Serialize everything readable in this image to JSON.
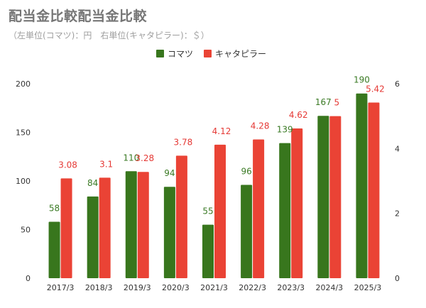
{
  "chart_data": {
    "type": "bar",
    "title": "配当金比較配当金比較",
    "subtitle": "（左単位(コマツ)：円　右単位(キャタピラー)：＄）",
    "categories": [
      "2017/3",
      "2018/3",
      "2019/3",
      "2020/3",
      "2021/3",
      "2022/3",
      "2023/3",
      "2024/3",
      "2025/3"
    ],
    "series": [
      {
        "name": "コマツ",
        "axis": "left",
        "color": "#38761d",
        "values": [
          58,
          84,
          110,
          94,
          55,
          96,
          139,
          167,
          190
        ],
        "labels": [
          "58",
          "84",
          "110",
          "94",
          "55",
          "96",
          "139",
          "167",
          "190"
        ]
      },
      {
        "name": "キャタピラー",
        "axis": "right",
        "color": "#ea4335",
        "values": [
          3.08,
          3.1,
          3.28,
          3.78,
          4.12,
          4.28,
          4.62,
          5,
          5.42
        ],
        "labels": [
          "3.08",
          "3.1",
          "3.28",
          "3.78",
          "4.12",
          "4.28",
          "4.62",
          "5",
          "5.42"
        ]
      }
    ],
    "y_left": {
      "ylim": [
        0,
        200
      ],
      "ticks": [
        "0",
        "50",
        "100",
        "150",
        "200"
      ]
    },
    "y_right": {
      "ylim": [
        0,
        6
      ],
      "ticks": [
        "0",
        "2",
        "4",
        "6"
      ]
    },
    "legend": "top-center",
    "label_color": "#3a7a24",
    "label_color2": "#e53935"
  }
}
